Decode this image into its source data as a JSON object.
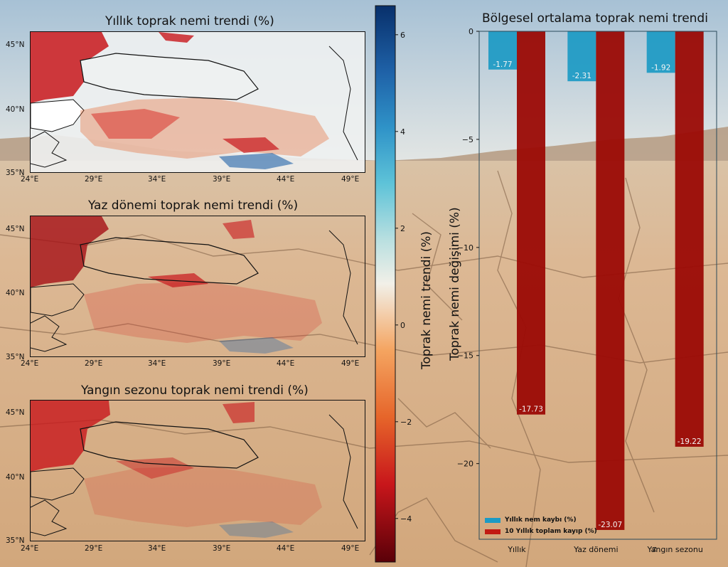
{
  "colors": {
    "sky_top": "#a9c3d6",
    "sky_bottom": "#dde4e6",
    "soil": "#d8b48e",
    "annual_bar": "#1c9ac4",
    "decade_bar": "#9b0a05",
    "map_red": "#c8161b",
    "map_orange": "#e6652a",
    "map_blue": "#1f62a8"
  },
  "maps": [
    {
      "title": "Yıllık toprak nemi trendi (%)",
      "lon_ticks": [
        "24°E",
        "29°E",
        "34°E",
        "39°E",
        "44°E",
        "49°E"
      ],
      "lat_ticks": [
        "45°N",
        "40°N",
        "35°N"
      ]
    },
    {
      "title": "Yaz dönemi toprak nemi trendi (%)",
      "lon_ticks": [
        "24°E",
        "29°E",
        "34°E",
        "39°E",
        "44°E",
        "49°E"
      ],
      "lat_ticks": [
        "45°N",
        "40°N",
        "35°N"
      ]
    },
    {
      "title": "Yangın sezonu toprak nemi trendi (%)",
      "lon_ticks": [
        "24°E",
        "29°E",
        "34°E",
        "39°E",
        "44°E",
        "49°E"
      ],
      "lat_ticks": [
        "45°N",
        "40°N",
        "35°N"
      ]
    }
  ],
  "colorbar": {
    "label": "Toprak nemi trendi (%)",
    "range": [
      -4.9,
      6.6
    ],
    "ticks": [
      "6",
      "4",
      "2",
      "0",
      "−2",
      "−4"
    ],
    "tick_values": [
      6,
      4,
      2,
      0,
      -2,
      -4
    ]
  },
  "chart_data": {
    "type": "bar",
    "title": "Bölgesel ortalama toprak nemi trendi",
    "xlabel": "",
    "ylabel": "Toprak nemi değişimi (%)",
    "categories": [
      "Yıllık",
      "Yaz dönemi",
      "Yangın sezonu"
    ],
    "extra_x_text": "z",
    "ylim": [
      -23.5,
      0
    ],
    "yticks": [
      0,
      -5,
      -10,
      -15,
      -20
    ],
    "ytick_labels": [
      "0",
      "−5",
      "−10",
      "−15",
      "−20"
    ],
    "series": [
      {
        "name": "Yıllık nem kaybı (%)",
        "values": [
          -1.77,
          -2.31,
          -1.92
        ],
        "labels": [
          "-1.77",
          "-2.31",
          "-1.92"
        ]
      },
      {
        "name": "10 Yıllık toplam kayıp (%)",
        "values": [
          -17.73,
          -23.07,
          -19.22
        ],
        "labels": [
          "-17.73",
          "-23.07",
          "-19.22"
        ]
      }
    ],
    "legend_position": "lower-left"
  }
}
